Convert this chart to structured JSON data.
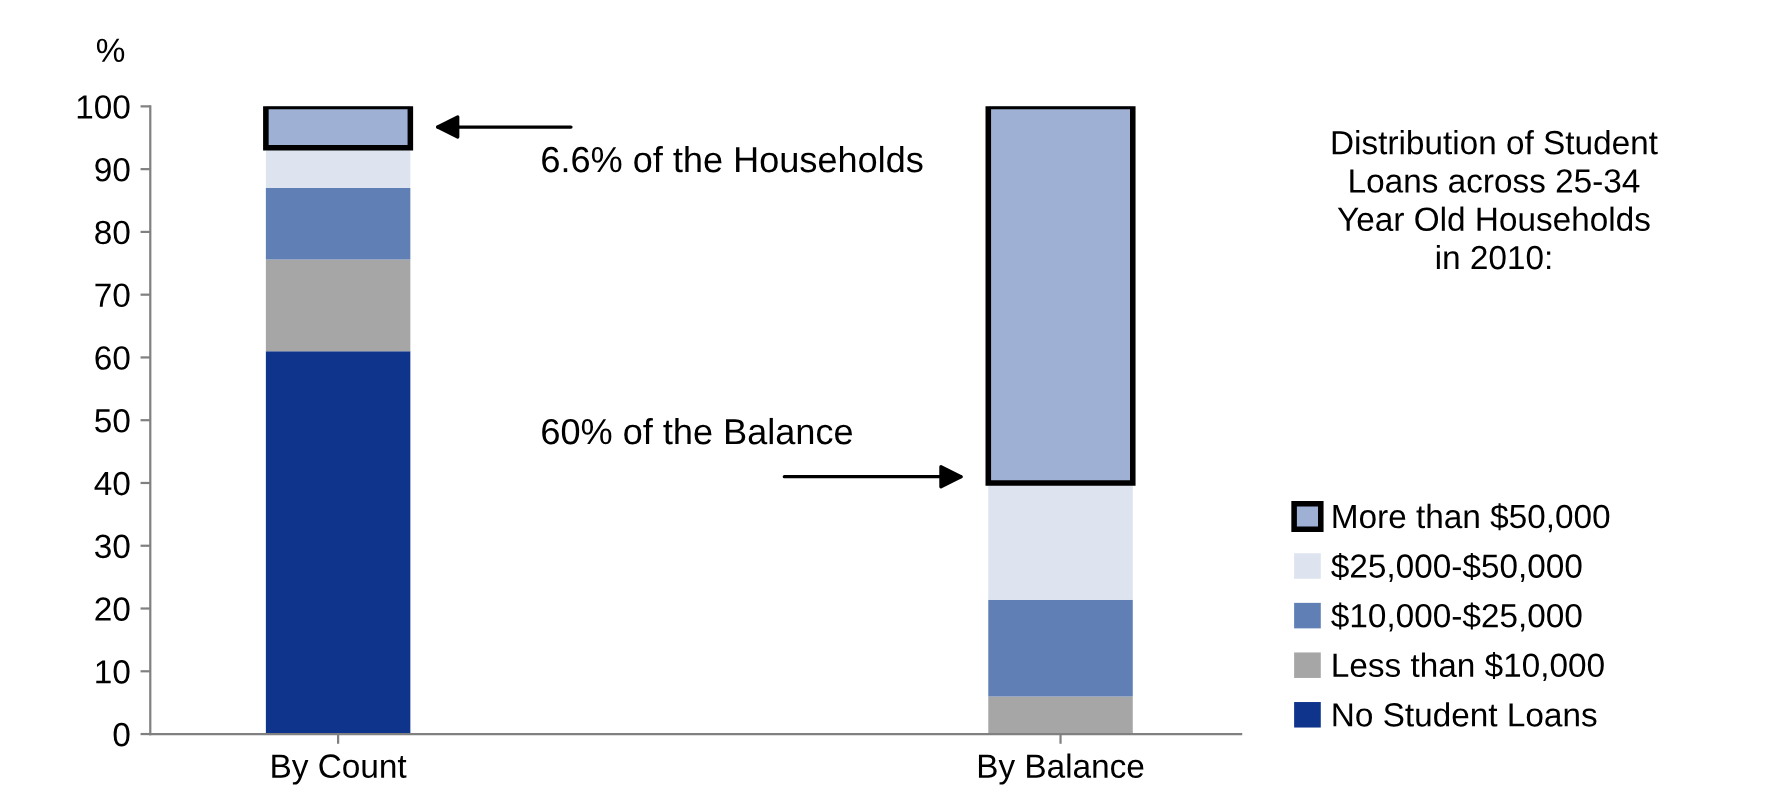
{
  "chart_data": {
    "type": "bar",
    "stacked": true,
    "ylabel": "%",
    "legend_title": "Distribution of Student\nLoans across 25-34\nYear Old Households\nin 2010:",
    "categories": [
      "By Count",
      "By Balance"
    ],
    "series": [
      {
        "name": "No Student Loans",
        "color": "#0e348c",
        "values": [
          61,
          0
        ]
      },
      {
        "name": "Less than $10,000",
        "color": "#a6a6a6",
        "values": [
          14.6,
          6
        ]
      },
      {
        "name": "$10,000-$25,000",
        "color": "#5f7fb5",
        "values": [
          11.4,
          15.4
        ]
      },
      {
        "name": "$25,000-$50,000",
        "color": "#dde4ef",
        "values": [
          6.4,
          18.6
        ]
      },
      {
        "name": "More than $50,000",
        "color": "#9eb0d4",
        "values": [
          6.6,
          60
        ]
      }
    ],
    "annotations": [
      "6.6% of the Households",
      "60% of the Balance"
    ],
    "ylim": [
      0,
      100
    ],
    "yticks": [
      0,
      10,
      20,
      30,
      40,
      50,
      60,
      70,
      80,
      90,
      100
    ],
    "grid": false,
    "legend": "right"
  }
}
